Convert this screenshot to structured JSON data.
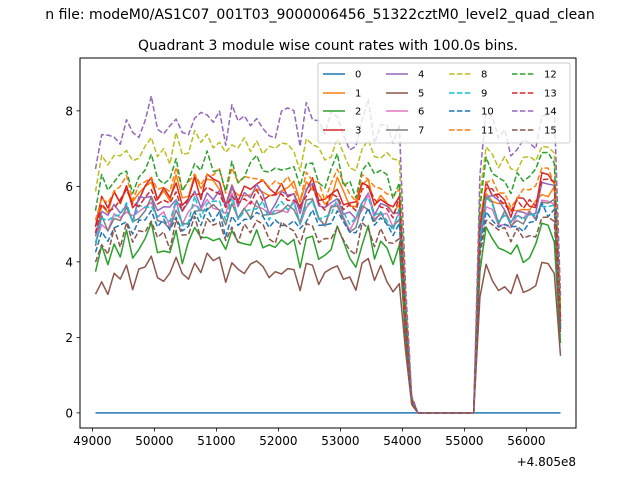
{
  "figure": {
    "suptitle": "n file: modeM0/AS1C07_001T03_9000006456_51322cztM0_level2_quad_clean",
    "offset_label": "+4.805e8"
  },
  "chart_data": {
    "type": "line",
    "title": "Quadrant 3 module wise count rates with 100.0s bins.",
    "xlabel": "",
    "ylabel": "",
    "xlim": [
      48800,
      56800
    ],
    "ylim": [
      -0.4,
      9.4
    ],
    "x_ticks": [
      49000,
      50000,
      51000,
      52000,
      53000,
      54000,
      55000,
      56000
    ],
    "y_ticks": [
      0,
      2,
      4,
      6,
      8
    ],
    "x_offset": "+4.805e8",
    "grid": false,
    "legend_position": "top-right",
    "legend_columns": 4,
    "x_start": 49050,
    "bin_width": 100,
    "segment_1_end": 54050,
    "gap_start": 54150,
    "gap_end": 55150,
    "segment_2_start": 55250,
    "x_end": 56550,
    "series": [
      {
        "name": "0",
        "color": "#1f77b4",
        "dash": "solid",
        "base1": 0.0,
        "base2": 0.0,
        "amp": 0.0,
        "seed": 1
      },
      {
        "name": "1",
        "color": "#ff7f0e",
        "dash": "solid",
        "base1": 5.8,
        "base2": 5.6,
        "amp": 0.35,
        "seed": 2
      },
      {
        "name": "2",
        "color": "#2ca02c",
        "dash": "solid",
        "base1": 4.4,
        "base2": 4.4,
        "amp": 0.4,
        "seed": 3
      },
      {
        "name": "3",
        "color": "#d62728",
        "dash": "solid",
        "base1": 5.8,
        "base2": 5.8,
        "amp": 0.4,
        "seed": 4
      },
      {
        "name": "4",
        "color": "#9467bd",
        "dash": "solid",
        "base1": 5.5,
        "base2": 5.6,
        "amp": 0.4,
        "seed": 5
      },
      {
        "name": "5",
        "color": "#8c564b",
        "dash": "solid",
        "base1": 3.7,
        "base2": 3.6,
        "amp": 0.35,
        "seed": 6
      },
      {
        "name": "6",
        "color": "#e377c2",
        "dash": "solid",
        "base1": 5.3,
        "base2": 5.3,
        "amp": 0.35,
        "seed": 7
      },
      {
        "name": "7",
        "color": "#7f7f7f",
        "dash": "solid",
        "base1": 5.2,
        "base2": 5.3,
        "amp": 0.35,
        "seed": 8
      },
      {
        "name": "8",
        "color": "#bcbd22",
        "dash": "dashed",
        "base1": 6.9,
        "base2": 6.8,
        "amp": 0.4,
        "seed": 9
      },
      {
        "name": "9",
        "color": "#17becf",
        "dash": "dashed",
        "base1": 5.3,
        "base2": 5.3,
        "amp": 0.35,
        "seed": 10
      },
      {
        "name": "10",
        "color": "#1f77b4",
        "dash": "dashed",
        "base1": 5.0,
        "base2": 5.1,
        "amp": 0.3,
        "seed": 11
      },
      {
        "name": "11",
        "color": "#ff7f0e",
        "dash": "dashed",
        "base1": 6.0,
        "base2": 6.0,
        "amp": 0.35,
        "seed": 12
      },
      {
        "name": "12",
        "color": "#2ca02c",
        "dash": "dashed",
        "base1": 6.3,
        "base2": 6.4,
        "amp": 0.4,
        "seed": 13
      },
      {
        "name": "13",
        "color": "#d62728",
        "dash": "dashed",
        "base1": 5.6,
        "base2": 5.8,
        "amp": 0.35,
        "seed": 14
      },
      {
        "name": "14",
        "color": "#9467bd",
        "dash": "dashed",
        "base1": 7.6,
        "base2": 7.4,
        "amp": 0.5,
        "seed": 15
      },
      {
        "name": "15",
        "color": "#8c564b",
        "dash": "dashed",
        "base1": 4.7,
        "base2": 4.9,
        "amp": 0.35,
        "seed": 16
      }
    ]
  }
}
